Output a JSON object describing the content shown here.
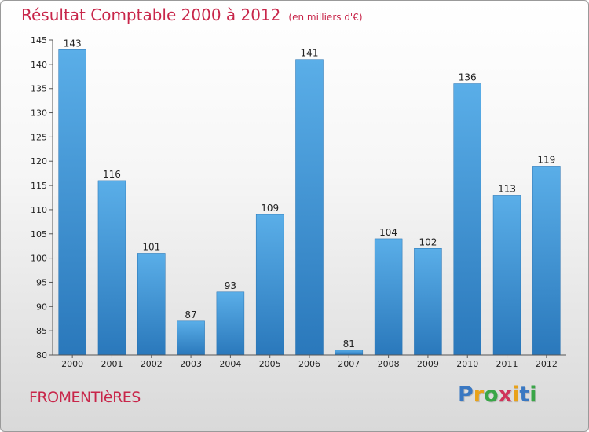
{
  "chart_data": {
    "type": "bar",
    "title": "Résultat Comptable 2000 à 2012",
    "subtitle": "(en milliers d'€)",
    "categories": [
      "2000",
      "2001",
      "2002",
      "2003",
      "2004",
      "2005",
      "2006",
      "2007",
      "2008",
      "2009",
      "2010",
      "2011",
      "2012"
    ],
    "values": [
      143,
      116,
      101,
      87,
      93,
      109,
      141,
      81,
      104,
      102,
      136,
      113,
      119
    ],
    "ylim": [
      80,
      145
    ],
    "yticks": [
      80,
      85,
      90,
      95,
      100,
      105,
      110,
      115,
      120,
      125,
      130,
      135,
      140,
      145
    ],
    "xlabel": "",
    "ylabel": "",
    "grid": false,
    "bar_color": "#2f86c8"
  },
  "commune": "FROMENTIèRES",
  "logo": {
    "letters": [
      "P",
      "r",
      "o",
      "x",
      "i",
      "t",
      "i"
    ],
    "colors": [
      "#3a78c2",
      "#e8a21a",
      "#3aa648",
      "#d0335a",
      "#e8a21a",
      "#3a78c2",
      "#3aa648"
    ]
  }
}
